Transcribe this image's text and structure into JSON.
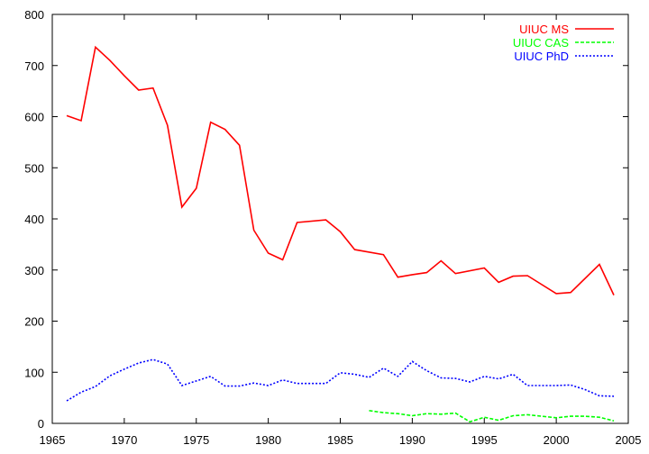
{
  "chart_data": {
    "type": "line",
    "title": "",
    "xlabel": "",
    "ylabel": "",
    "xlim": [
      1965,
      2005
    ],
    "ylim": [
      0,
      800
    ],
    "x_ticks": [
      1965,
      1970,
      1975,
      1980,
      1985,
      1990,
      1995,
      2000,
      2005
    ],
    "y_ticks": [
      0,
      100,
      200,
      300,
      400,
      500,
      600,
      700,
      800
    ],
    "x_tick_labels": [
      "1965",
      "1970",
      "1975",
      "1980",
      "1985",
      "1990",
      "1995",
      "2000",
      "2005"
    ],
    "y_tick_labels": [
      "0",
      "100",
      "200",
      "300",
      "400",
      "500",
      "600",
      "700",
      "800"
    ],
    "grid": false,
    "legend_position": "top-right",
    "series": [
      {
        "name": "UIUC MS",
        "color": "#ff0000",
        "style": "solid",
        "x": [
          1966,
          1967,
          1968,
          1969,
          1970,
          1971,
          1972,
          1973,
          1974,
          1975,
          1976,
          1977,
          1978,
          1979,
          1980,
          1981,
          1982,
          1984,
          1985,
          1986,
          1988,
          1989,
          1990,
          1991,
          1992,
          1993,
          1995,
          1996,
          1997,
          1998,
          2000,
          2001,
          2003,
          2004
        ],
        "y": [
          602,
          592,
          736,
          710,
          680,
          652,
          656,
          583,
          423,
          460,
          589,
          575,
          544,
          378,
          333,
          320,
          393,
          398,
          375,
          340,
          330,
          286,
          291,
          295,
          318,
          293,
          304,
          276,
          288,
          289,
          254,
          256,
          311,
          251
        ]
      },
      {
        "name": "UIUC CAS",
        "color": "#00ff00",
        "style": "dashed",
        "x": [
          1987,
          1988,
          1989,
          1990,
          1991,
          1992,
          1993,
          1994,
          1995,
          1996,
          1997,
          1998,
          1999,
          2000,
          2001,
          2002,
          2003,
          2004
        ],
        "y": [
          25,
          21,
          19,
          15,
          19,
          18,
          20,
          3,
          12,
          6,
          15,
          17,
          14,
          11,
          14,
          14,
          12,
          5
        ]
      },
      {
        "name": "UIUC PhD",
        "color": "#0000ff",
        "style": "dotted",
        "x": [
          1966,
          1967,
          1968,
          1969,
          1970,
          1971,
          1972,
          1973,
          1974,
          1975,
          1976,
          1977,
          1978,
          1979,
          1980,
          1981,
          1982,
          1983,
          1984,
          1985,
          1986,
          1987,
          1988,
          1989,
          1990,
          1991,
          1992,
          1993,
          1994,
          1995,
          1996,
          1997,
          1998,
          1999,
          2000,
          2001,
          2002,
          2003,
          2004
        ],
        "y": [
          44,
          61,
          72,
          93,
          106,
          118,
          125,
          116,
          74,
          83,
          92,
          73,
          73,
          79,
          74,
          85,
          78,
          78,
          78,
          99,
          96,
          90,
          108,
          92,
          121,
          103,
          89,
          88,
          81,
          92,
          87,
          96,
          74,
          74,
          74,
          75,
          66,
          54,
          53
        ]
      }
    ]
  }
}
